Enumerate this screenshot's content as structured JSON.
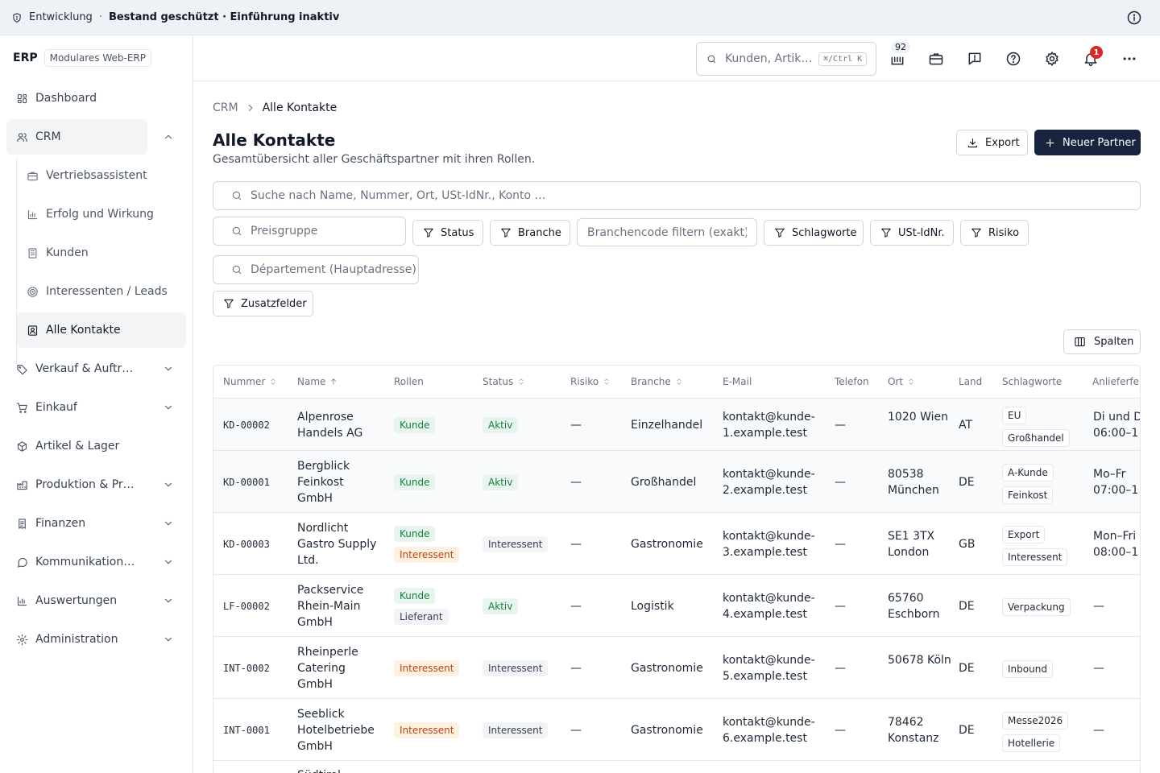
{
  "banner": {
    "env": "Entwicklung",
    "separator": "·",
    "message": "Bestand geschützt · Einführung inaktiv"
  },
  "brand": {
    "logo": "ERP",
    "tagline": "Modulares Web-ERP"
  },
  "nav": {
    "dashboard": "Dashboard",
    "crm": "CRM",
    "crm_sub": [
      "Vertriebsassistent",
      "Erfolg und Wirkung",
      "Kunden",
      "Interessenten / Leads",
      "Alle Kontakte"
    ],
    "verkauf": "Verkauf & Auftr…",
    "einkauf": "Einkauf",
    "artikel": "Artikel & Lager",
    "produktion": "Produktion & Pr…",
    "finanzen": "Finanzen",
    "kommunikation": "Kommunikation…",
    "auswertungen": "Auswertungen",
    "administration": "Administration"
  },
  "header": {
    "search_placeholder": "Kunden, Artik…",
    "shortcut": "⌘/Ctrl K",
    "count_badge": "92",
    "notification_count": "1"
  },
  "breadcrumb": {
    "root": "CRM",
    "current": "Alle Kontakte"
  },
  "page": {
    "title": "Alle Kontakte",
    "subtitle": "Gesamtübersicht aller Geschäftspartner mit ihren Rollen.",
    "export": "Export",
    "new_partner": "Neuer Partner"
  },
  "filters": {
    "search_placeholder": "Suche nach Name, Nummer, Ort, USt-IdNr., Konto …",
    "preisgruppe": "Preisgruppe",
    "status": "Status",
    "branche": "Branche",
    "branchencode": "Branchencode filtern (exakt)",
    "schlagworte": "Schlagworte",
    "ustid": "USt-IdNr.",
    "risiko": "Risiko",
    "departement": "Département (Hauptadresse)",
    "zusatzfelder": "Zusatzfelder",
    "spalten": "Spalten"
  },
  "table": {
    "columns": [
      "Nummer",
      "Name",
      "Rollen",
      "Status",
      "Risiko",
      "Branche",
      "E-Mail",
      "Telefon",
      "Ort",
      "Land",
      "Schlagworte",
      "Anlieferfe"
    ],
    "rows": [
      {
        "nummer": "KD-00002",
        "name": "Alpenrose Handels AG",
        "rollen": [
          "Kunde"
        ],
        "status": "Aktiv",
        "risiko": "—",
        "branche": "Einzelhandel",
        "email": "kontakt@kunde-1.example.test",
        "telefon": "—",
        "ort": "1020 Wien",
        "land": "AT",
        "schlagworte": [
          "EU",
          "Großhandel"
        ],
        "anlieferung": "Di und D 06:00–1"
      },
      {
        "nummer": "KD-00001",
        "name": "Bergblick Feinkost GmbH",
        "rollen": [
          "Kunde"
        ],
        "status": "Aktiv",
        "risiko": "—",
        "branche": "Großhandel",
        "email": "kontakt@kunde-2.example.test",
        "telefon": "—",
        "ort": "80538 München",
        "land": "DE",
        "schlagworte": [
          "A-Kunde",
          "Feinkost"
        ],
        "anlieferung": "Mo–Fr 07:00–1"
      },
      {
        "nummer": "KD-00003",
        "name": "Nordlicht Gastro Supply Ltd.",
        "rollen": [
          "Kunde",
          "Interessent"
        ],
        "status": "Interessent",
        "risiko": "—",
        "branche": "Gastronomie",
        "email": "kontakt@kunde-3.example.test",
        "telefon": "—",
        "ort": "SE1 3TX London",
        "land": "GB",
        "schlagworte": [
          "Export",
          "Interessent"
        ],
        "anlieferung": "Mon–Fri 08:00–1"
      },
      {
        "nummer": "LF-00002",
        "name": "Packservice Rhein-Main GmbH",
        "rollen": [
          "Kunde",
          "Lieferant"
        ],
        "status": "Aktiv",
        "risiko": "—",
        "branche": "Logistik",
        "email": "kontakt@kunde-4.example.test",
        "telefon": "—",
        "ort": "65760 Eschborn",
        "land": "DE",
        "schlagworte": [
          "Verpackung"
        ],
        "anlieferung": "—"
      },
      {
        "nummer": "INT-0002",
        "name": "Rheinperle Catering GmbH",
        "rollen": [
          "Interessent"
        ],
        "status": "Interessent",
        "risiko": "—",
        "branche": "Gastronomie",
        "email": "kontakt@kunde-5.example.test",
        "telefon": "—",
        "ort": "50678 Köln",
        "land": "DE",
        "schlagworte": [
          "Inbound"
        ],
        "anlieferung": "—"
      },
      {
        "nummer": "INT-0001",
        "name": "Seeblick Hotelbetriebe GmbH",
        "rollen": [
          "Interessent"
        ],
        "status": "Interessent",
        "risiko": "—",
        "branche": "Gastronomie",
        "email": "kontakt@kunde-6.example.test",
        "telefon": "—",
        "ort": "78462 Konstanz",
        "land": "DE",
        "schlagworte": [
          "Messe2026",
          "Hotellerie"
        ],
        "anlieferung": "—"
      },
      {
        "nummer": "",
        "name": "Südtirol…",
        "rollen": [],
        "status": "",
        "risiko": "",
        "branche": "",
        "email": "",
        "telefon": "",
        "ort": "",
        "land": "",
        "schlagworte": [],
        "anlieferung": ""
      }
    ]
  },
  "colors": {
    "primary": "#17233f",
    "success": "#15803d",
    "warning": "#c2410c",
    "danger": "#dc2626"
  }
}
